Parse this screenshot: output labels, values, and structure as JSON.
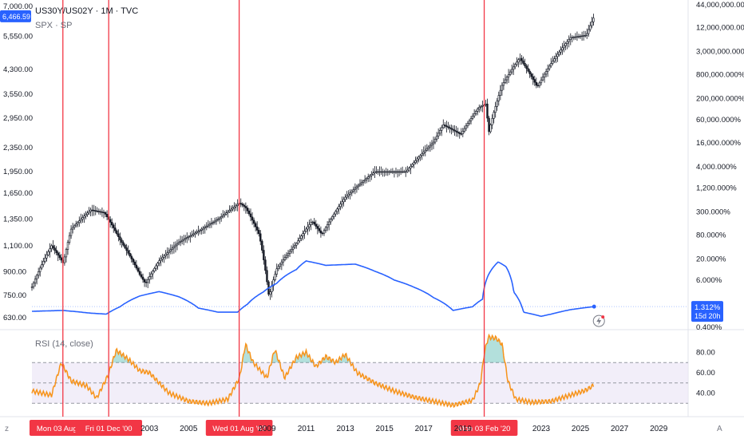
{
  "header": {
    "symbol_line": "US30Y/US02Y · 1M · TVC",
    "compare_symbol": "SPX · SP"
  },
  "price_tag": {
    "value": "6,466.59",
    "color": "#2962ff"
  },
  "ratio_tag": {
    "value": "1.312%",
    "countdown": "15d 20h",
    "color": "#2962ff"
  },
  "rsi_pane": {
    "label": "RSI (14, close)"
  },
  "colors": {
    "candle_up": "#131722",
    "candle_down": "#131722",
    "ratio_line": "#2962ff",
    "rsi_line": "#f7931a",
    "rsi_band": "#ede7f6",
    "vline": "#f23645",
    "axis_text": "#131722"
  },
  "icons": {
    "corner_left": "z",
    "corner_right": "A",
    "lightning": "lightning-icon"
  },
  "chart_data": [
    {
      "type": "candlestick",
      "series_name": "SPX · SP",
      "scale": "log",
      "ylim": [
        600,
        7000
      ],
      "left_ticks": [
        "7,000.00",
        "5,550.00",
        "4,300.00",
        "3,550.00",
        "2,950.00",
        "2,350.00",
        "1,950.00",
        "1,650.00",
        "1,350.00",
        "1,100.00",
        "900.00",
        "750.00",
        "630.00"
      ],
      "left_tick_values": [
        7000,
        5550,
        4300,
        3550,
        2950,
        2350,
        1950,
        1650,
        1350,
        1100,
        900,
        750,
        630
      ],
      "approx_path": [
        [
          1997.0,
          800
        ],
        [
          1998.0,
          1100
        ],
        [
          1998.6,
          960
        ],
        [
          1999.0,
          1250
        ],
        [
          2000.0,
          1450
        ],
        [
          2000.7,
          1420
        ],
        [
          2001.5,
          1150
        ],
        [
          2002.5,
          880
        ],
        [
          2002.8,
          820
        ],
        [
          2003.5,
          980
        ],
        [
          2004.5,
          1130
        ],
        [
          2005.5,
          1230
        ],
        [
          2006.5,
          1350
        ],
        [
          2007.6,
          1530
        ],
        [
          2007.9,
          1480
        ],
        [
          2008.6,
          1200
        ],
        [
          2009.1,
          740
        ],
        [
          2009.5,
          920
        ],
        [
          2010.5,
          1120
        ],
        [
          2011.3,
          1330
        ],
        [
          2011.8,
          1200
        ],
        [
          2013.0,
          1600
        ],
        [
          2014.5,
          1950
        ],
        [
          2015.6,
          1950
        ],
        [
          2016.1,
          1950
        ],
        [
          2017.5,
          2450
        ],
        [
          2018.0,
          2800
        ],
        [
          2018.9,
          2600
        ],
        [
          2019.8,
          3200
        ],
        [
          2020.2,
          3300
        ],
        [
          2020.3,
          2600
        ],
        [
          2021.0,
          3800
        ],
        [
          2021.9,
          4700
        ],
        [
          2022.8,
          3750
        ],
        [
          2023.5,
          4500
        ],
        [
          2024.5,
          5500
        ],
        [
          2025.3,
          5600
        ],
        [
          2025.7,
          6466
        ]
      ]
    },
    {
      "type": "line",
      "series_name": "US30Y/US02Y",
      "scale": "log",
      "right_ticks": [
        "44,000,000.000%",
        "12,000,000.000%",
        "3,000,000.000%",
        "800,000.000%",
        "200,000.000%",
        "60,000.000%",
        "16,000.000%",
        "4,000.000%",
        "1,200.000%",
        "300.000%",
        "80.000%",
        "20.000%",
        "6.000%",
        "1.312%",
        "0.400%"
      ],
      "right_tick_values": [
        44000000,
        12000000,
        3000000,
        800000,
        200000,
        60000,
        16000,
        4000,
        1200,
        300,
        80,
        20,
        6,
        1.312,
        0.4
      ],
      "approx_path": [
        [
          1997.0,
          1.0
        ],
        [
          1998.6,
          1.05
        ],
        [
          2000.0,
          0.9
        ],
        [
          2000.8,
          0.85
        ],
        [
          2001.5,
          1.3
        ],
        [
          2002.5,
          2.4
        ],
        [
          2003.5,
          3.1
        ],
        [
          2004.5,
          2.3
        ],
        [
          2005.5,
          1.2
        ],
        [
          2006.5,
          0.95
        ],
        [
          2007.5,
          0.95
        ],
        [
          2008.0,
          1.5
        ],
        [
          2008.8,
          3.0
        ],
        [
          2009.5,
          5.0
        ],
        [
          2010.5,
          11
        ],
        [
          2011.0,
          18
        ],
        [
          2012.0,
          14
        ],
        [
          2013.5,
          15
        ],
        [
          2014.5,
          10
        ],
        [
          2015.5,
          6
        ],
        [
          2016.5,
          4
        ],
        [
          2017.5,
          2.2
        ],
        [
          2018.5,
          1.05
        ],
        [
          2019.5,
          1.3
        ],
        [
          2020.0,
          2.0
        ],
        [
          2020.3,
          8
        ],
        [
          2020.8,
          17
        ],
        [
          2021.2,
          13
        ],
        [
          2021.6,
          3
        ],
        [
          2022.1,
          0.95
        ],
        [
          2023.0,
          0.75
        ],
        [
          2023.5,
          0.85
        ],
        [
          2024.5,
          1.1
        ],
        [
          2025.7,
          1.312
        ]
      ]
    },
    {
      "type": "line",
      "series_name": "RSI (14, close)",
      "ylim": [
        20,
        100
      ],
      "levels": [
        70,
        50,
        30
      ],
      "right_ticks": [
        "80.00",
        "60.00",
        "40.00"
      ],
      "right_tick_values": [
        80,
        60,
        40
      ],
      "approx_path": [
        [
          1997.0,
          42
        ],
        [
          1998.0,
          38
        ],
        [
          1998.5,
          70
        ],
        [
          1999.0,
          52
        ],
        [
          1999.8,
          47
        ],
        [
          2000.3,
          35
        ],
        [
          2000.9,
          58
        ],
        [
          2001.3,
          82
        ],
        [
          2001.6,
          78
        ],
        [
          2002.0,
          72
        ],
        [
          2002.5,
          62
        ],
        [
          2003.0,
          60
        ],
        [
          2004.0,
          40
        ],
        [
          2005.0,
          32
        ],
        [
          2006.0,
          30
        ],
        [
          2007.0,
          34
        ],
        [
          2007.6,
          55
        ],
        [
          2007.9,
          88
        ],
        [
          2008.3,
          70
        ],
        [
          2009.0,
          55
        ],
        [
          2009.4,
          83
        ],
        [
          2009.9,
          55
        ],
        [
          2010.5,
          75
        ],
        [
          2011.0,
          80
        ],
        [
          2011.5,
          66
        ],
        [
          2012.0,
          76
        ],
        [
          2012.5,
          70
        ],
        [
          2013.0,
          78
        ],
        [
          2013.6,
          60
        ],
        [
          2014.5,
          50
        ],
        [
          2015.5,
          42
        ],
        [
          2016.5,
          36
        ],
        [
          2017.5,
          32
        ],
        [
          2018.5,
          28
        ],
        [
          2019.5,
          33
        ],
        [
          2019.9,
          50
        ],
        [
          2020.1,
          80
        ],
        [
          2020.3,
          95
        ],
        [
          2020.7,
          94
        ],
        [
          2021.0,
          88
        ],
        [
          2021.3,
          52
        ],
        [
          2021.7,
          34
        ],
        [
          2022.5,
          31
        ],
        [
          2023.5,
          32
        ],
        [
          2024.5,
          38
        ],
        [
          2025.3,
          43
        ],
        [
          2025.7,
          48
        ]
      ]
    }
  ],
  "x_axis": {
    "ticks": [
      "2003",
      "2005",
      "2009",
      "2011",
      "2013",
      "2015",
      "2017",
      "2019",
      "2023",
      "2025",
      "2027",
      "2029"
    ],
    "tick_values": [
      2003,
      2005,
      2009,
      2011,
      2013,
      2015,
      2017,
      2019,
      2023,
      2025,
      2027,
      2029
    ],
    "xlim": [
      1997.0,
      2030.5
    ]
  },
  "vlines": [
    {
      "x": 1998.58,
      "label": "Mon 03 Aug '98"
    },
    {
      "x": 2000.92,
      "label": "Fri 01 Dec '00"
    },
    {
      "x": 2007.58,
      "label": "Wed 01 Aug '07"
    },
    {
      "x": 2020.09,
      "label": "Mon 03 Feb '20"
    }
  ]
}
